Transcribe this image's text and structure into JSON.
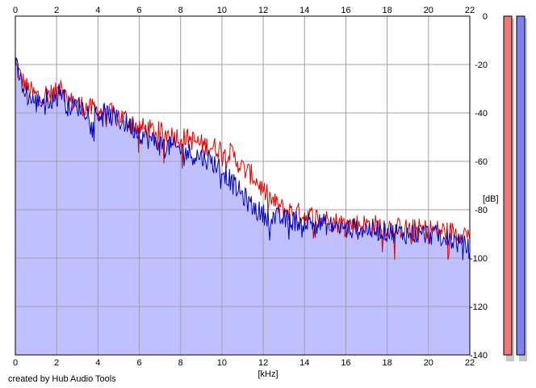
{
  "credit": "created by Hub Audio Tools",
  "chart_data": {
    "type": "area",
    "xlabel": "[kHz]",
    "ylabel": "[dB]",
    "xlim": [
      0,
      22
    ],
    "ylim": [
      -140,
      0
    ],
    "x_ticks": [
      0,
      2,
      4,
      6,
      8,
      10,
      12,
      14,
      16,
      18,
      20,
      22
    ],
    "y_ticks": [
      0,
      -20,
      -40,
      -60,
      -80,
      -100,
      -120,
      -140
    ],
    "y_tick_labels": [
      "0",
      "-20",
      "-40",
      "-60",
      "-80",
      "-100",
      "-120",
      "-140"
    ],
    "grid": true,
    "x_axis_position": "top-and-bottom",
    "y_axis_position": "right",
    "series": [
      {
        "color": "#e00000",
        "x": [
          0,
          0.3,
          0.6,
          1,
          1.5,
          2,
          2.2,
          2.5,
          3,
          3.5,
          4,
          4.5,
          5,
          5.5,
          6,
          6.5,
          7,
          7.5,
          8,
          8.5,
          9,
          9.5,
          10,
          10.5,
          11,
          11.5,
          12,
          12.5,
          13,
          14,
          15,
          16,
          17,
          18,
          19,
          20,
          21,
          22
        ],
        "values": [
          -20,
          -26,
          -30,
          -33,
          -32,
          -32,
          -26,
          -35,
          -36,
          -38,
          -39,
          -40,
          -41,
          -43,
          -46,
          -47,
          -48,
          -49,
          -50,
          -51,
          -53,
          -54,
          -55,
          -57,
          -63,
          -66,
          -72,
          -77,
          -80,
          -82,
          -84,
          -86,
          -86,
          -87,
          -88,
          -88,
          -89,
          -90
        ]
      },
      {
        "color": "#0000c0",
        "x": [
          0,
          0.3,
          0.6,
          1,
          1.5,
          2,
          2.2,
          2.5,
          3,
          3.5,
          4,
          4.5,
          5,
          5.5,
          6,
          6.5,
          7,
          7.5,
          8,
          8.5,
          9,
          9.5,
          10,
          10.5,
          11,
          11.5,
          12,
          12.5,
          13,
          14,
          15,
          16,
          17,
          18,
          19,
          20,
          21,
          22
        ],
        "values": [
          -20,
          -28,
          -33,
          -36,
          -34,
          -34,
          -30,
          -37,
          -37,
          -39,
          -40,
          -41,
          -43,
          -45,
          -48,
          -51,
          -53,
          -54,
          -55,
          -57,
          -58,
          -60,
          -63,
          -69,
          -74,
          -79,
          -82,
          -83,
          -84,
          -85,
          -86,
          -88,
          -88,
          -89,
          -90,
          -90,
          -92,
          -96
        ]
      }
    ],
    "level_meters": [
      {
        "color": "#f07878"
      },
      {
        "color": "#8080f0"
      }
    ],
    "fill_color": "#c0c0ff"
  }
}
